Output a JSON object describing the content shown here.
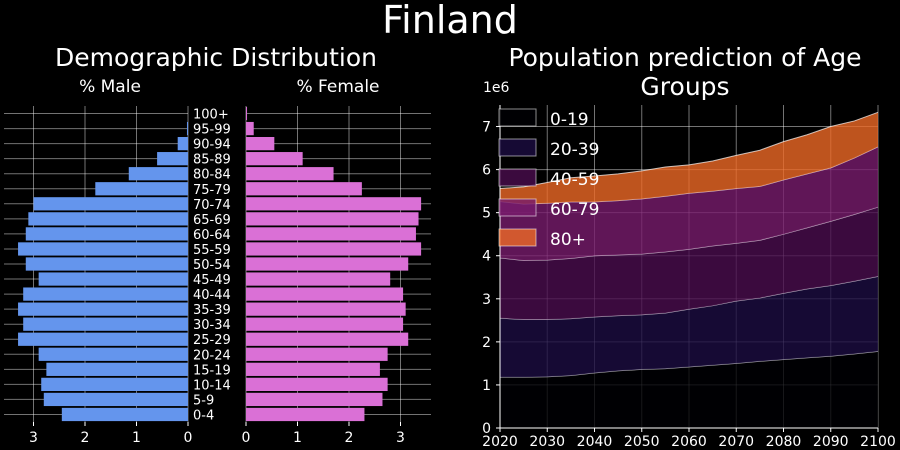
{
  "figure": {
    "title": "Finland",
    "left_title": "Demographic Distribution",
    "right_title": "Population prediction of Age Groups"
  },
  "colors": {
    "male": "#6495ED",
    "female": "#DA70D6",
    "stack": [
      "#000004",
      "#1b0c41",
      "#4a0c4e",
      "#781c6d",
      "#ed6925"
    ],
    "stack_alpha": 0.8
  },
  "chart_data": [
    {
      "type": "bar",
      "name": "pyramid_male",
      "title": "% Male",
      "orientation": "horizontal",
      "x_inverted": true,
      "categories": [
        "0-4",
        "5-9",
        "10-14",
        "15-19",
        "20-24",
        "25-29",
        "30-34",
        "35-39",
        "40-44",
        "45-49",
        "50-54",
        "55-59",
        "60-64",
        "65-69",
        "70-74",
        "75-79",
        "80-84",
        "85-89",
        "90-94",
        "95-99",
        "100+"
      ],
      "values": [
        2.45,
        2.8,
        2.85,
        2.75,
        2.9,
        3.3,
        3.2,
        3.3,
        3.2,
        2.9,
        3.15,
        3.3,
        3.15,
        3.1,
        3.0,
        1.8,
        1.15,
        0.6,
        0.2,
        0.02,
        0.0
      ],
      "xticks": [
        "3",
        "2",
        "1",
        "0"
      ],
      "xlim": [
        0,
        3.5
      ],
      "grid": true
    },
    {
      "type": "bar",
      "name": "pyramid_female",
      "title": "% Female",
      "orientation": "horizontal",
      "categories": [
        "0-4",
        "5-9",
        "10-14",
        "15-19",
        "20-24",
        "25-29",
        "30-34",
        "35-39",
        "40-44",
        "45-49",
        "50-54",
        "55-59",
        "60-64",
        "65-69",
        "70-74",
        "75-79",
        "80-84",
        "85-89",
        "90-94",
        "95-99",
        "100+"
      ],
      "values": [
        2.3,
        2.65,
        2.75,
        2.6,
        2.75,
        3.15,
        3.05,
        3.1,
        3.05,
        2.8,
        3.15,
        3.4,
        3.3,
        3.35,
        3.4,
        2.25,
        1.7,
        1.1,
        0.55,
        0.15,
        0.02
      ],
      "xticks": [
        "0",
        "1",
        "2",
        "3"
      ],
      "xlim": [
        0,
        3.5
      ],
      "grid": true
    },
    {
      "type": "area",
      "name": "population_prediction",
      "title": "Population prediction of Age Groups",
      "stacked": true,
      "x": [
        2020,
        2025,
        2030,
        2035,
        2040,
        2045,
        2050,
        2055,
        2060,
        2065,
        2070,
        2075,
        2080,
        2085,
        2090,
        2095,
        2100
      ],
      "series": [
        {
          "name": "0-19",
          "values": [
            1.18,
            1.18,
            1.19,
            1.22,
            1.28,
            1.33,
            1.36,
            1.38,
            1.42,
            1.46,
            1.5,
            1.55,
            1.59,
            1.63,
            1.67,
            1.72,
            1.78
          ]
        },
        {
          "name": "20-39",
          "values": [
            1.37,
            1.34,
            1.33,
            1.32,
            1.3,
            1.28,
            1.27,
            1.29,
            1.34,
            1.38,
            1.45,
            1.47,
            1.54,
            1.6,
            1.64,
            1.69,
            1.74
          ]
        },
        {
          "name": "40-59",
          "values": [
            1.4,
            1.37,
            1.38,
            1.4,
            1.42,
            1.41,
            1.41,
            1.42,
            1.39,
            1.39,
            1.34,
            1.34,
            1.37,
            1.42,
            1.49,
            1.55,
            1.61
          ]
        },
        {
          "name": "60-79",
          "values": [
            1.31,
            1.31,
            1.32,
            1.31,
            1.25,
            1.26,
            1.28,
            1.29,
            1.3,
            1.27,
            1.27,
            1.25,
            1.26,
            1.25,
            1.24,
            1.31,
            1.4
          ]
        },
        {
          "name": "80+",
          "values": [
            0.3,
            0.4,
            0.48,
            0.56,
            0.6,
            0.62,
            0.65,
            0.68,
            0.66,
            0.7,
            0.77,
            0.84,
            0.89,
            0.91,
            0.96,
            0.86,
            0.8
          ]
        }
      ],
      "xticks": [
        2020,
        2030,
        2040,
        2050,
        2060,
        2070,
        2080,
        2090,
        2100
      ],
      "yticks": [
        0,
        1,
        2,
        3,
        4,
        5,
        6,
        7
      ],
      "yscale_label": "1e6",
      "xlim": [
        2020,
        2100
      ],
      "ylim": [
        0,
        7.5
      ],
      "legend": "upper-left",
      "grid": true
    }
  ]
}
